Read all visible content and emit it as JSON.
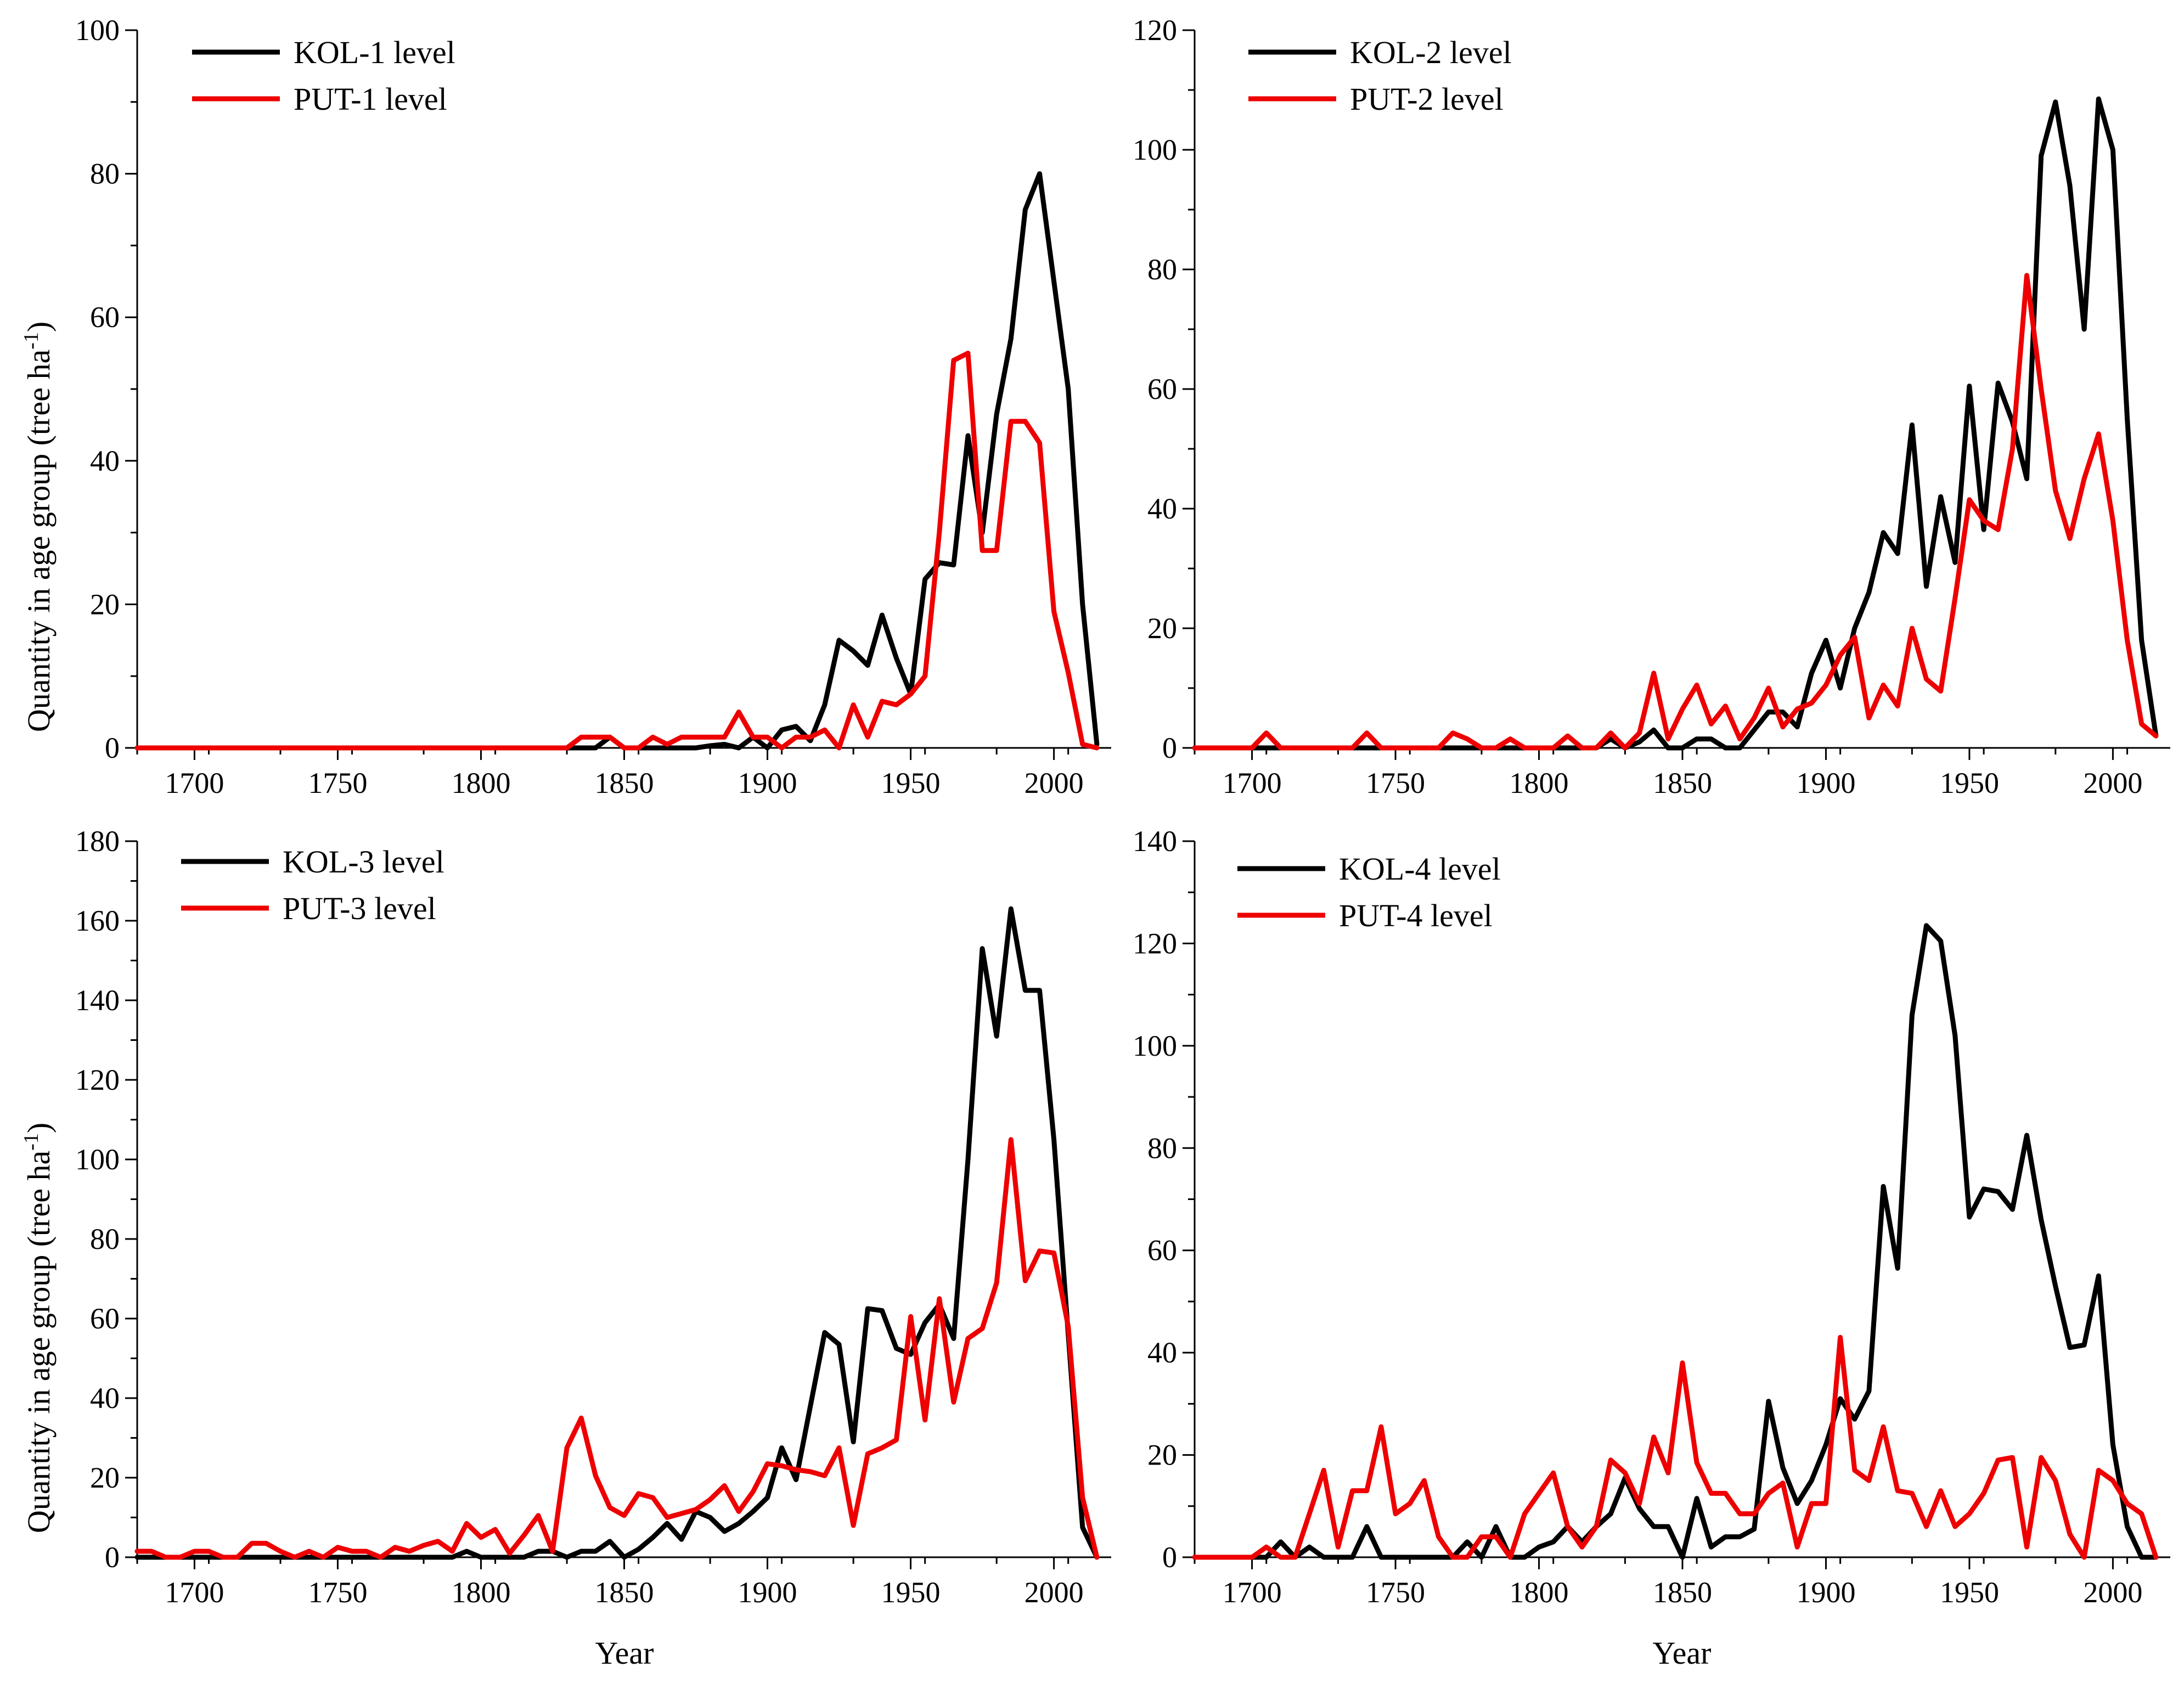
{
  "figure_title": "",
  "x_title": "Year",
  "y_title_main": "Quantity in age group (tree ha",
  "y_title_sup": "-1",
  "y_title_end": ")",
  "colors": {
    "black_series": "#000000",
    "red_series": "#ee0000"
  },
  "chart_data": [
    {
      "id": "panel-1",
      "type": "line",
      "xlim": [
        1680,
        2020
      ],
      "ylim": [
        0,
        100
      ],
      "xticks": [
        1700,
        1750,
        1800,
        1850,
        1900,
        1950,
        2000
      ],
      "yticks": [
        0,
        20,
        40,
        60,
        80,
        100
      ],
      "xlabel": "",
      "ylabel": "Quantity in age group (tree ha-1)",
      "series": [
        {
          "name": "KOL-1 level",
          "color": "#000000",
          "x": [
            1680,
            1830,
            1835,
            1840,
            1845,
            1850,
            1855,
            1860,
            1865,
            1870,
            1875,
            1880,
            1885,
            1890,
            1895,
            1900,
            1905,
            1910,
            1915,
            1920,
            1925,
            1930,
            1935,
            1940,
            1945,
            1950,
            1955,
            1960,
            1965,
            1970,
            1975,
            1980,
            1985,
            1990,
            1995,
            2000,
            2005,
            2010,
            2015
          ],
          "y": [
            0,
            0,
            0,
            0,
            1.5,
            0,
            0,
            0,
            0,
            0,
            0,
            0.3,
            0.5,
            0,
            1.5,
            0,
            2.5,
            3,
            1,
            6,
            15,
            13.5,
            11.5,
            18.5,
            12.5,
            7.5,
            23.5,
            25.8,
            25.5,
            43.5,
            30,
            46.5,
            57,
            75,
            80,
            65,
            50,
            20,
            0.5
          ]
        },
        {
          "name": "PUT-1 level",
          "color": "#ee0000",
          "x": [
            1680,
            1830,
            1835,
            1840,
            1845,
            1850,
            1855,
            1860,
            1865,
            1870,
            1875,
            1880,
            1885,
            1890,
            1895,
            1900,
            1905,
            1910,
            1915,
            1920,
            1925,
            1930,
            1935,
            1940,
            1945,
            1950,
            1955,
            1960,
            1965,
            1970,
            1975,
            1980,
            1985,
            1990,
            1995,
            2000,
            2005,
            2010,
            2015
          ],
          "y": [
            0,
            0,
            1.5,
            1.5,
            1.5,
            0,
            0,
            1.5,
            0.5,
            1.5,
            1.5,
            1.5,
            1.5,
            5,
            1.5,
            1.5,
            0,
            1.5,
            1.5,
            2.5,
            0,
            6,
            1.5,
            6.5,
            6,
            7.5,
            10,
            30,
            54,
            55,
            27.5,
            27.5,
            45.5,
            45.5,
            42.5,
            19,
            10.5,
            0.5,
            0
          ]
        }
      ]
    },
    {
      "id": "panel-2",
      "type": "line",
      "xlim": [
        1680,
        2020
      ],
      "ylim": [
        0,
        120
      ],
      "xticks": [
        1700,
        1750,
        1800,
        1850,
        1900,
        1950,
        2000
      ],
      "yticks": [
        0,
        20,
        40,
        60,
        80,
        100,
        120
      ],
      "xlabel": "",
      "ylabel": "",
      "series": [
        {
          "name": "KOL-2 level",
          "color": "#000000",
          "x": [
            1680,
            1820,
            1825,
            1830,
            1835,
            1840,
            1845,
            1850,
            1855,
            1860,
            1865,
            1870,
            1875,
            1880,
            1885,
            1890,
            1895,
            1900,
            1905,
            1910,
            1915,
            1920,
            1925,
            1930,
            1935,
            1940,
            1945,
            1950,
            1955,
            1960,
            1965,
            1970,
            1975,
            1980,
            1985,
            1990,
            1995,
            2000,
            2005,
            2010,
            2015
          ],
          "y": [
            0,
            0,
            1.5,
            0,
            1,
            3,
            0,
            0,
            1.5,
            1.5,
            0,
            0,
            3,
            6,
            6,
            3.5,
            12.5,
            18,
            10,
            20,
            26,
            36,
            32.5,
            54,
            27,
            42,
            31,
            60.5,
            36.5,
            61,
            54.5,
            45,
            99,
            108,
            94,
            70,
            108.5,
            100,
            55,
            18,
            2
          ]
        },
        {
          "name": "PUT-2 level",
          "color": "#ee0000",
          "x": [
            1680,
            1700,
            1705,
            1710,
            1715,
            1720,
            1725,
            1730,
            1735,
            1740,
            1745,
            1750,
            1755,
            1760,
            1765,
            1770,
            1775,
            1780,
            1785,
            1790,
            1795,
            1800,
            1805,
            1810,
            1815,
            1820,
            1825,
            1830,
            1835,
            1840,
            1845,
            1850,
            1855,
            1860,
            1865,
            1870,
            1875,
            1880,
            1885,
            1890,
            1895,
            1900,
            1905,
            1910,
            1915,
            1920,
            1925,
            1930,
            1935,
            1940,
            1945,
            1950,
            1955,
            1960,
            1965,
            1970,
            1975,
            1980,
            1985,
            1990,
            1995,
            2000,
            2005,
            2010,
            2015
          ],
          "y": [
            0,
            0,
            2.5,
            0,
            0,
            0,
            0,
            0,
            0,
            2.5,
            0,
            0,
            0,
            0,
            0,
            2.5,
            1.5,
            0,
            0,
            1.5,
            0,
            0,
            0,
            2,
            0,
            0,
            2.5,
            0,
            2.5,
            12.5,
            1.5,
            6.5,
            10.5,
            4,
            7,
            1.5,
            5,
            10,
            3.5,
            6.5,
            7.5,
            10.5,
            15.5,
            18.5,
            5,
            10.5,
            7,
            20,
            11.5,
            9.5,
            25,
            41.5,
            38,
            36.5,
            50,
            79,
            60,
            43,
            35,
            45,
            52.5,
            38,
            18,
            4,
            2
          ]
        }
      ]
    },
    {
      "id": "panel-3",
      "type": "line",
      "xlim": [
        1680,
        2020
      ],
      "ylim": [
        0,
        180
      ],
      "xticks": [
        1700,
        1750,
        1800,
        1850,
        1900,
        1950,
        2000
      ],
      "yticks": [
        0,
        20,
        40,
        60,
        80,
        100,
        120,
        140,
        160,
        180
      ],
      "xlabel": "Year",
      "ylabel": "Quantity in age group (tree ha-1)",
      "series": [
        {
          "name": "KOL-3 level",
          "color": "#000000",
          "x": [
            1680,
            1790,
            1795,
            1800,
            1805,
            1810,
            1815,
            1820,
            1825,
            1830,
            1835,
            1840,
            1845,
            1850,
            1855,
            1860,
            1865,
            1870,
            1875,
            1880,
            1885,
            1890,
            1895,
            1900,
            1905,
            1910,
            1915,
            1920,
            1925,
            1930,
            1935,
            1940,
            1945,
            1950,
            1955,
            1960,
            1965,
            1970,
            1975,
            1980,
            1985,
            1990,
            1995,
            2000,
            2005,
            2010,
            2015
          ],
          "y": [
            0,
            0,
            1.5,
            0,
            0,
            0,
            0,
            1.5,
            1.5,
            0,
            1.5,
            1.5,
            4,
            0,
            2,
            5,
            8.5,
            4.5,
            11.5,
            10,
            6.5,
            8.5,
            11.5,
            15,
            27.5,
            19.5,
            38,
            56.5,
            53.5,
            29,
            62.5,
            62,
            52.5,
            51,
            59,
            63.5,
            55,
            100,
            153,
            131,
            163,
            142.5,
            142.5,
            105,
            56,
            7.5,
            0
          ]
        },
        {
          "name": "PUT-3 level",
          "color": "#ee0000",
          "x": [
            1680,
            1685,
            1690,
            1695,
            1700,
            1705,
            1710,
            1715,
            1720,
            1725,
            1730,
            1735,
            1740,
            1745,
            1750,
            1755,
            1760,
            1765,
            1770,
            1775,
            1780,
            1785,
            1790,
            1795,
            1800,
            1805,
            1810,
            1815,
            1820,
            1825,
            1830,
            1835,
            1840,
            1845,
            1850,
            1855,
            1860,
            1865,
            1870,
            1875,
            1880,
            1885,
            1890,
            1895,
            1900,
            1905,
            1910,
            1915,
            1920,
            1925,
            1930,
            1935,
            1940,
            1945,
            1950,
            1955,
            1960,
            1965,
            1970,
            1975,
            1980,
            1985,
            1990,
            1995,
            2000,
            2005,
            2010,
            2015
          ],
          "y": [
            1.5,
            1.5,
            0,
            0,
            1.5,
            1.5,
            0,
            0,
            3.5,
            3.5,
            1.5,
            0,
            1.5,
            0,
            2.5,
            1.5,
            1.5,
            0,
            2.5,
            1.5,
            3,
            4,
            1.5,
            8.5,
            5,
            7,
            1,
            5.5,
            10.5,
            1.5,
            27.5,
            35,
            20.5,
            12.5,
            10.5,
            16,
            15,
            10,
            11,
            12,
            14.5,
            18,
            11.5,
            16.5,
            23.5,
            23,
            22,
            21.5,
            20.5,
            27.5,
            8,
            26,
            27.5,
            29.5,
            60.5,
            34.5,
            65,
            39,
            55,
            57.5,
            69,
            105,
            69.5,
            77,
            76.5,
            58,
            15,
            0
          ]
        }
      ]
    },
    {
      "id": "panel-4",
      "type": "line",
      "xlim": [
        1680,
        2020
      ],
      "ylim": [
        0,
        140
      ],
      "xticks": [
        1700,
        1750,
        1800,
        1850,
        1900,
        1950,
        2000
      ],
      "yticks": [
        0,
        20,
        40,
        60,
        80,
        100,
        120,
        140
      ],
      "xlabel": "Year",
      "ylabel": "",
      "series": [
        {
          "name": "KOL-4 level",
          "color": "#000000",
          "x": [
            1680,
            1700,
            1705,
            1710,
            1715,
            1720,
            1725,
            1730,
            1735,
            1740,
            1745,
            1750,
            1755,
            1760,
            1765,
            1770,
            1775,
            1780,
            1785,
            1790,
            1795,
            1800,
            1805,
            1810,
            1815,
            1820,
            1825,
            1830,
            1835,
            1840,
            1845,
            1850,
            1855,
            1860,
            1865,
            1870,
            1875,
            1880,
            1885,
            1890,
            1895,
            1900,
            1905,
            1910,
            1915,
            1920,
            1925,
            1930,
            1935,
            1940,
            1945,
            1950,
            1955,
            1960,
            1965,
            1970,
            1975,
            1980,
            1985,
            1990,
            1995,
            2000,
            2005,
            2010,
            2015
          ],
          "y": [
            0,
            0,
            0,
            3,
            0,
            2,
            0,
            0,
            0,
            6,
            0,
            0,
            0,
            0,
            0,
            0,
            3,
            0,
            6,
            0,
            0,
            2,
            3,
            6,
            3,
            6,
            8.5,
            15.5,
            9.5,
            6,
            6,
            0,
            11.5,
            2,
            4,
            4,
            5.5,
            30.5,
            17.5,
            10.5,
            15,
            22,
            31,
            27,
            32.5,
            72.5,
            56.5,
            106,
            123.5,
            120.5,
            102,
            66.5,
            72,
            71.5,
            68,
            82.5,
            66,
            53,
            41,
            41.5,
            55,
            22,
            6,
            0,
            0
          ]
        },
        {
          "name": "PUT-4 level",
          "color": "#ee0000",
          "x": [
            1680,
            1700,
            1705,
            1710,
            1715,
            1720,
            1725,
            1730,
            1735,
            1740,
            1745,
            1750,
            1755,
            1760,
            1765,
            1770,
            1775,
            1780,
            1785,
            1790,
            1795,
            1800,
            1805,
            1810,
            1815,
            1820,
            1825,
            1830,
            1835,
            1840,
            1845,
            1850,
            1855,
            1860,
            1865,
            1870,
            1875,
            1880,
            1885,
            1890,
            1895,
            1900,
            1905,
            1910,
            1915,
            1920,
            1925,
            1930,
            1935,
            1940,
            1945,
            1950,
            1955,
            1960,
            1965,
            1970,
            1975,
            1980,
            1985,
            1990,
            1995,
            2000,
            2005,
            2010,
            2015
          ],
          "y": [
            0,
            0,
            2,
            0,
            0,
            8.5,
            17,
            2,
            13,
            13,
            25.5,
            8.5,
            10.5,
            15,
            4,
            0,
            0,
            4,
            4,
            0,
            8.5,
            12.5,
            16.5,
            6,
            2,
            6,
            19,
            16.5,
            10.5,
            23.5,
            16.5,
            38,
            18.5,
            12.5,
            12.5,
            8.5,
            8.5,
            12.5,
            14.5,
            2,
            10.5,
            10.5,
            43,
            17,
            15,
            25.5,
            13,
            12.5,
            6,
            13,
            6,
            8.5,
            12.5,
            19,
            19.5,
            2,
            19.5,
            15,
            4.5,
            0,
            17,
            15,
            10.5,
            8.5,
            0
          ]
        }
      ]
    }
  ]
}
